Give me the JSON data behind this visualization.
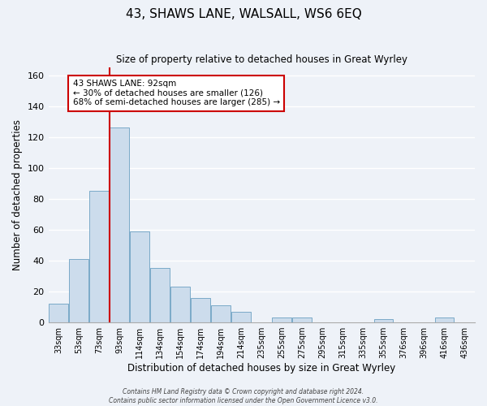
{
  "title": "43, SHAWS LANE, WALSALL, WS6 6EQ",
  "subtitle": "Size of property relative to detached houses in Great Wyrley",
  "xlabel": "Distribution of detached houses by size in Great Wyrley",
  "ylabel": "Number of detached properties",
  "bar_labels": [
    "33sqm",
    "53sqm",
    "73sqm",
    "93sqm",
    "114sqm",
    "134sqm",
    "154sqm",
    "174sqm",
    "194sqm",
    "214sqm",
    "235sqm",
    "255sqm",
    "275sqm",
    "295sqm",
    "315sqm",
    "335sqm",
    "355sqm",
    "376sqm",
    "396sqm",
    "416sqm",
    "436sqm"
  ],
  "bar_heights": [
    12,
    41,
    85,
    126,
    59,
    35,
    23,
    16,
    11,
    7,
    0,
    3,
    3,
    0,
    0,
    0,
    2,
    0,
    0,
    3,
    0
  ],
  "bar_color": "#ccdcec",
  "bar_edge_color": "#7aaac8",
  "vline_color": "#cc0000",
  "annotation_title": "43 SHAWS LANE: 92sqm",
  "annotation_line1": "← 30% of detached houses are smaller (126)",
  "annotation_line2": "68% of semi-detached houses are larger (285) →",
  "annotation_box_color": "#ffffff",
  "annotation_box_edge": "#cc0000",
  "ylim": [
    0,
    165
  ],
  "yticks": [
    0,
    20,
    40,
    60,
    80,
    100,
    120,
    140,
    160
  ],
  "background_color": "#eef2f8",
  "grid_color": "#ffffff",
  "footer_line1": "Contains HM Land Registry data © Crown copyright and database right 2024.",
  "footer_line2": "Contains public sector information licensed under the Open Government Licence v3.0."
}
